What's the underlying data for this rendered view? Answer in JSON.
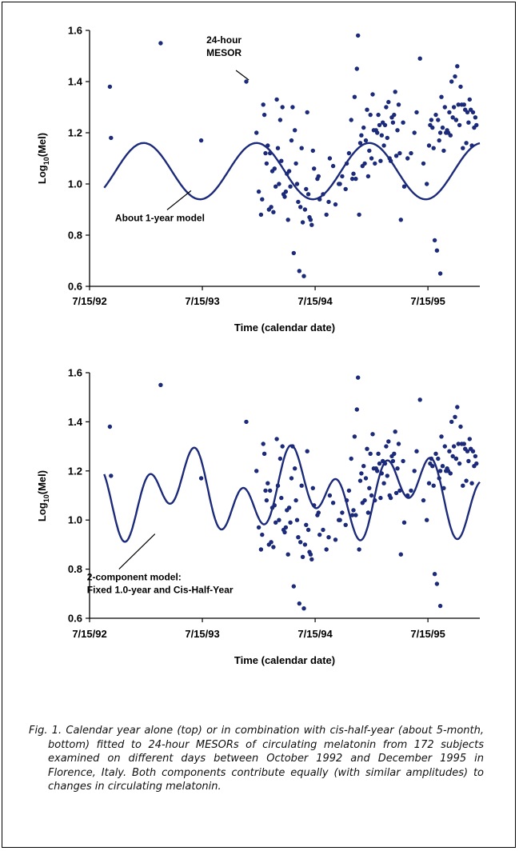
{
  "caption": "Fig. 1. Calendar year alone (top) or in combination with cis-half-year (about 5-month, bottom) fitted to 24-hour MESORs of circulating melatonin from 172 subjects examined on different days between October 1992 and December 1995 in Florence, Italy. Both components contribute equally (with similar amplitudes) to changes in circulating melatonin.",
  "chart_data": [
    {
      "type": "scatter",
      "title": "",
      "xlabel": "Time (calendar date)",
      "ylabel_prefix": "Log",
      "ylabel_sub": "10",
      "ylabel_suffix": "(Mel)",
      "x_tick_labels": [
        "7/15/92",
        "7/15/93",
        "7/15/94",
        "7/15/95"
      ],
      "x_ticks_years": [
        1992.54,
        1993.54,
        1994.54,
        1995.54
      ],
      "xlim": [
        1992.54,
        1996.0
      ],
      "ylim": [
        0.6,
        1.6
      ],
      "y_ticks": [
        0.6,
        0.8,
        1.0,
        1.2,
        1.4,
        1.6
      ],
      "y_tick_labels": [
        "0.6",
        "0.8",
        "1.0",
        "1.2",
        "1.4",
        "1.6"
      ],
      "grid": false,
      "annotations": [
        {
          "lines": [
            "24-hour",
            "MESOR"
          ],
          "x": 1993.98,
          "y": 1.4
        },
        {
          "lines": [
            "About 1-year model"
          ],
          "x": 1993.44,
          "y": 0.98
        }
      ],
      "series": [
        {
          "kind": "points",
          "color": "#1c2a7a",
          "x": [
            1992.72,
            1992.73,
            1993.17,
            1993.53,
            1993.93,
            1994.02,
            1994.08,
            1994.11,
            1994.14,
            1994.17,
            1994.2,
            1994.23,
            1994.25,
            1994.28,
            1994.31,
            1994.33,
            1994.36,
            1994.39,
            1994.42,
            1994.45,
            1994.47,
            1994.5,
            1994.53,
            1994.56,
            1994.58,
            1994.61,
            1994.64,
            1994.67,
            1994.7,
            1994.72,
            1994.75,
            1994.78,
            1994.81,
            1994.84,
            1994.86,
            1994.89,
            1994.92,
            1994.95,
            1994.97,
            1995.0,
            1995.03,
            1995.05,
            1995.08,
            1995.11,
            1995.14,
            1995.17,
            1995.19,
            1995.22,
            1995.25,
            1995.28,
            1995.3,
            1995.33,
            1995.36,
            1995.39,
            1995.42,
            1995.44,
            1995.47,
            1995.5,
            1995.53,
            1995.55,
            1995.58,
            1995.61,
            1995.63,
            1995.66,
            1995.69,
            1995.72,
            1995.75,
            1995.78,
            1995.8,
            1995.83,
            1995.86,
            1995.89,
            1995.92,
            1995.95,
            1994.06,
            1994.12,
            1994.18,
            1994.22,
            1994.27,
            1994.3,
            1994.35,
            1994.4,
            1994.44,
            1994.49,
            1994.88,
            1994.91,
            1994.94,
            1994.98,
            1995.02,
            1995.07,
            1995.1,
            1995.13,
            1995.16,
            1995.2,
            1995.23,
            1995.27,
            1995.6,
            1995.62,
            1995.65,
            1995.68,
            1995.71,
            1995.74,
            1995.77,
            1995.79,
            1995.82,
            1995.85,
            1995.88,
            1995.91,
            1995.94,
            1995.97,
            1994.1,
            1994.16,
            1994.24,
            1994.32,
            1994.38,
            1994.46,
            1994.52,
            1994.57,
            1994.66,
            1994.76,
            1994.82,
            1994.9,
            1994.99,
            1995.04,
            1995.12,
            1995.18,
            1995.26,
            1995.32,
            1995.57,
            1995.64,
            1995.7,
            1995.76,
            1995.84,
            1995.9,
            1994.04,
            1994.09,
            1994.15,
            1994.21,
            1994.26,
            1994.34,
            1994.41,
            1994.48,
            1994.87,
            1994.93,
            1995.01,
            1995.09,
            1995.15,
            1995.21,
            1995.29,
            1995.59,
            1995.67,
            1995.73,
            1995.81,
            1995.87,
            1995.93,
            1995.96,
            1994.07,
            1994.13,
            1994.19,
            1994.29,
            1994.37,
            1994.43,
            1994.51,
            1994.96,
            1995.06,
            1995.24,
            1995.56,
            1995.65,
            1995.79
          ],
          "y": [
            1.38,
            1.18,
            1.55,
            1.17,
            1.4,
            1.2,
            1.31,
            1.08,
            1.12,
            0.89,
            1.33,
            1.25,
            1.3,
            0.97,
            1.05,
            1.17,
            1.21,
            0.93,
            1.14,
            0.9,
            1.28,
            0.86,
            1.06,
            1.02,
            0.94,
            0.96,
            0.88,
            1.1,
            1.07,
            0.92,
            1.0,
            1.03,
            0.98,
            1.12,
            1.25,
            1.34,
            1.58,
            1.19,
            1.22,
            1.29,
            1.27,
            1.35,
            1.21,
            1.23,
            1.24,
            1.3,
            1.32,
            1.26,
            1.36,
            1.31,
            0.86,
            0.99,
            1.1,
            1.12,
            1.2,
            1.28,
            1.49,
            1.08,
            1.0,
            1.15,
            1.22,
            1.27,
            1.25,
            1.34,
            1.3,
            1.2,
            1.4,
            1.42,
            1.46,
            1.38,
            1.31,
            1.28,
            1.29,
            1.22,
            0.88,
            1.15,
            1.06,
            1.0,
            0.95,
            0.86,
            0.73,
            0.66,
            0.64,
            0.87,
            1.04,
            1.45,
            1.16,
            1.08,
            1.13,
            1.08,
            1.27,
            1.19,
            1.23,
            1.1,
            1.24,
            1.21,
            0.78,
            0.74,
            0.65,
            1.13,
            1.21,
            1.19,
            1.3,
            1.25,
            1.23,
            1.14,
            1.16,
            1.33,
            1.28,
            1.23,
            1.12,
            1.05,
            1.09,
            0.99,
            1.0,
            0.98,
            1.13,
            1.03,
            0.93,
            1.0,
            1.08,
            1.02,
            1.17,
            1.1,
            1.09,
            1.18,
            1.11,
            1.24,
            1.25,
            1.17,
            1.2,
            1.26,
            1.31,
            1.24,
            0.97,
            1.27,
            0.91,
            1.14,
            0.96,
            1.3,
            0.91,
            0.96,
            1.02,
            0.88,
            1.03,
            1.2,
            1.15,
            1.09,
            1.12,
            1.14,
            1.22,
            1.28,
            1.31,
            1.29,
            1.15,
            1.26,
            0.94,
            0.9,
            0.99,
            1.04,
            1.08,
            0.85,
            0.84,
            1.07,
            1.21,
            1.27,
            1.23,
            1.2,
            1.25
          ]
        },
        {
          "kind": "curve",
          "color": "#1c2a7a",
          "model": "1-year cosine",
          "mesor": 1.05,
          "amplitude": 0.11,
          "period_years": 1.0,
          "acrophase_year": 1993.02
        }
      ]
    },
    {
      "type": "scatter",
      "title": "",
      "xlabel": "Time (calendar date)",
      "ylabel_prefix": "Log",
      "ylabel_sub": "10",
      "ylabel_suffix": "(Mel)",
      "x_tick_labels": [
        "7/15/92",
        "7/15/93",
        "7/15/94",
        "7/15/95"
      ],
      "x_ticks_years": [
        1992.54,
        1993.54,
        1994.54,
        1995.54
      ],
      "xlim": [
        1992.54,
        1996.0
      ],
      "ylim": [
        0.6,
        1.6
      ],
      "y_ticks": [
        0.6,
        0.8,
        1.0,
        1.2,
        1.4,
        1.6
      ],
      "y_tick_labels": [
        "0.6",
        "0.8",
        "1.0",
        "1.2",
        "1.4",
        "1.6"
      ],
      "grid": false,
      "annotations": [
        {
          "lines": [
            "2-component model:",
            "Fixed 1.0-year and Cis-Half-Year"
          ],
          "x": 1993.12,
          "y": 0.95
        }
      ],
      "series": [
        {
          "kind": "points",
          "color": "#1c2a7a",
          "same_as_top": true
        },
        {
          "kind": "curve",
          "color": "#1c2a7a",
          "model": "1-year + cis-half-year cosine",
          "mesor": 1.11,
          "components": [
            {
              "amplitude": 0.09,
              "period_years": 1.0,
              "acrophase_year": 1993.38
            },
            {
              "amplitude": 0.11,
              "period_years": 0.42,
              "acrophase_year": 1993.06
            }
          ]
        }
      ]
    }
  ]
}
